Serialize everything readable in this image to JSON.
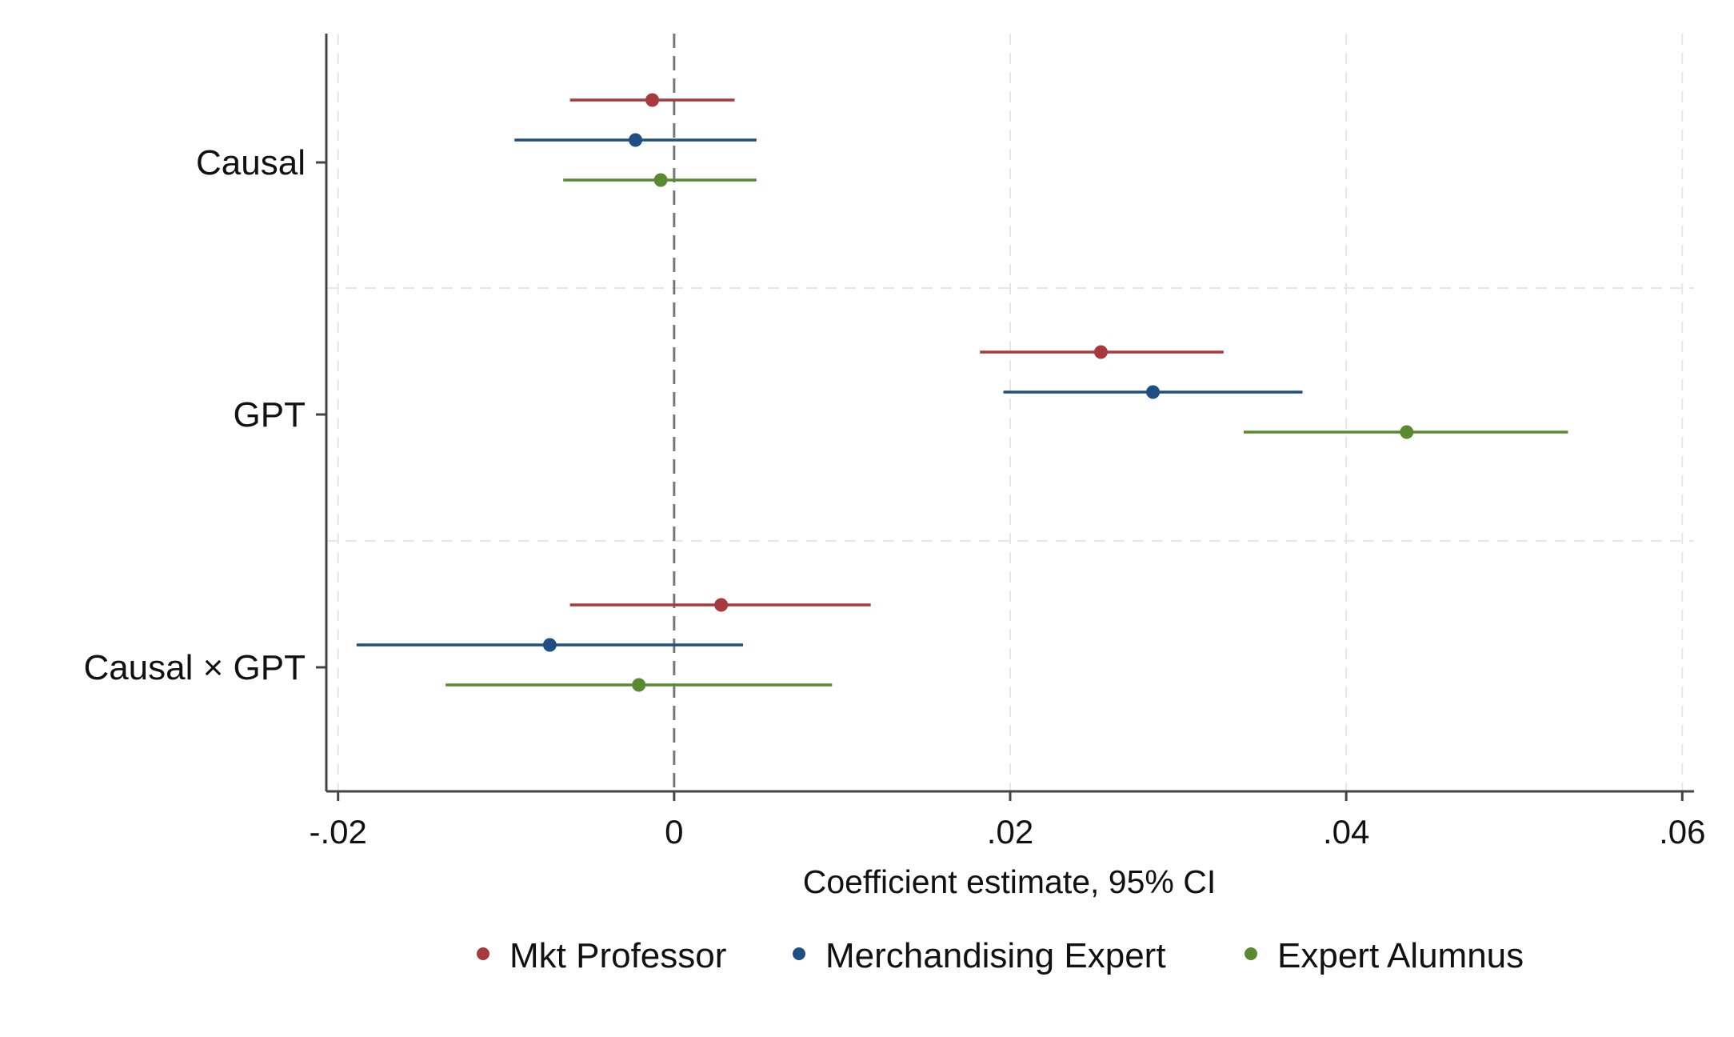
{
  "chart_data": {
    "type": "scatter",
    "subtype": "coefficient-plot",
    "title": "",
    "xlabel": "Coefficient estimate, 95% CI",
    "ylabel": "",
    "xlim": [
      -0.0207,
      0.0607
    ],
    "x_ticks": [
      {
        "value": -0.02,
        "label": "-.02"
      },
      {
        "value": 0,
        "label": "0"
      },
      {
        "value": 0.02,
        "label": ".02"
      },
      {
        "value": 0.04,
        "label": ".04"
      },
      {
        "value": 0.06,
        "label": ".06"
      }
    ],
    "categories": [
      "Causal",
      "GPT",
      "Causal × GPT"
    ],
    "reference_line": {
      "x": 0,
      "style": "dashed",
      "color": "#777777"
    },
    "grid": true,
    "legend_position": "bottom",
    "series": [
      {
        "name": "Mkt Professor",
        "color": "#a83a3f",
        "estimates": [
          -0.0013,
          0.0254,
          0.0028
        ],
        "ci_low": [
          -0.0062,
          0.0182,
          -0.0062
        ],
        "ci_high": [
          0.0036,
          0.0327,
          0.0117
        ]
      },
      {
        "name": "Merchandising Expert",
        "color": "#1f4e82",
        "estimates": [
          -0.0023,
          0.0285,
          -0.0074
        ],
        "ci_low": [
          -0.0095,
          0.0196,
          -0.0189
        ],
        "ci_high": [
          0.0049,
          0.0374,
          0.0041
        ]
      },
      {
        "name": "Expert Alumnus",
        "color": "#5a8a30",
        "estimates": [
          -0.0008,
          0.0436,
          -0.0021
        ],
        "ci_low": [
          -0.0066,
          0.0339,
          -0.0136
        ],
        "ci_high": [
          0.0049,
          0.0532,
          0.0094
        ]
      }
    ]
  }
}
